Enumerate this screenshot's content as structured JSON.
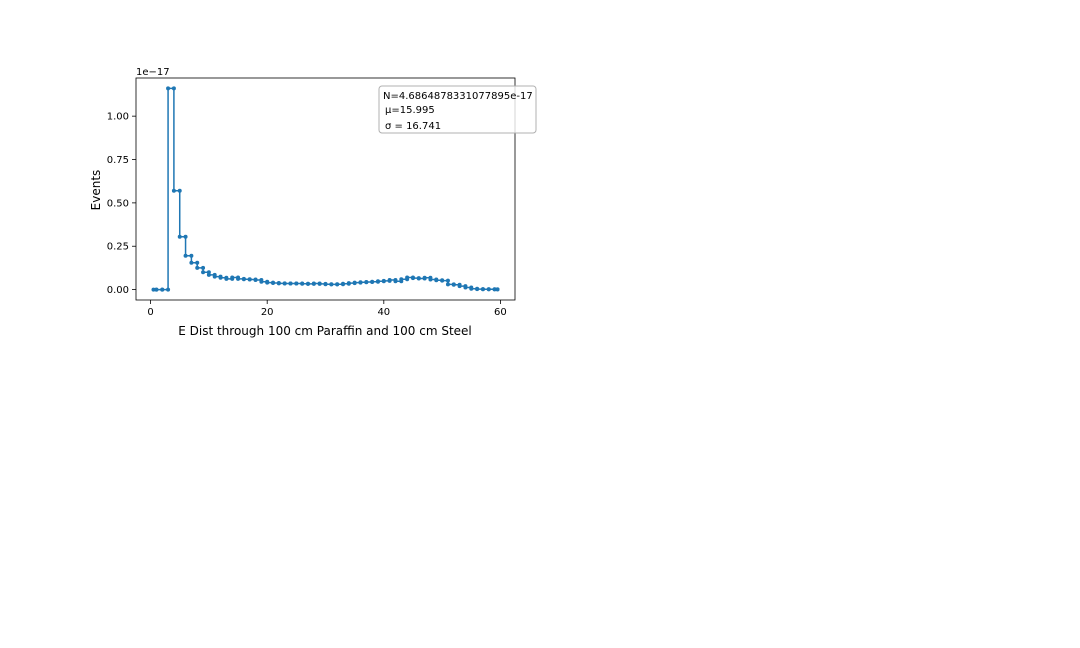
{
  "chart_data": {
    "type": "line",
    "title": "",
    "xlabel": "E Dist through 100 cm Paraffin and 100 cm Steel",
    "ylabel": "Events",
    "y_offset_label": "1e−17",
    "xlim": [
      -2.5,
      62.5
    ],
    "ylim": [
      -0.06,
      1.22
    ],
    "x_ticks": [
      0,
      20,
      40,
      60
    ],
    "x_tick_labels": [
      "0",
      "20",
      "40",
      "60"
    ],
    "y_ticks": [
      0.0,
      0.25,
      0.5,
      0.75,
      1.0
    ],
    "y_tick_labels": [
      "0.00",
      "0.25",
      "0.50",
      "0.75",
      "1.00"
    ],
    "grid": false,
    "step_style": "post",
    "series_color": "#1f77b4",
    "series": [
      {
        "x": [
          0.5,
          1,
          2,
          3,
          4,
          5,
          6,
          7,
          8,
          9,
          10,
          11,
          12,
          13,
          14,
          15,
          16,
          17,
          18,
          19,
          20,
          21,
          22,
          23,
          24,
          25,
          26,
          27,
          28,
          29,
          30,
          31,
          32,
          33,
          34,
          35,
          36,
          37,
          38,
          39,
          40,
          41,
          42,
          43,
          44,
          45,
          46,
          47,
          48,
          49,
          50,
          51,
          52,
          53,
          54,
          55,
          56,
          57,
          58,
          59,
          59.5
        ],
        "y": [
          0.0,
          0.0,
          0.0,
          1.16,
          0.57,
          0.305,
          0.195,
          0.155,
          0.125,
          0.1,
          0.085,
          0.075,
          0.068,
          0.062,
          0.07,
          0.062,
          0.06,
          0.058,
          0.055,
          0.045,
          0.04,
          0.038,
          0.036,
          0.035,
          0.035,
          0.035,
          0.034,
          0.033,
          0.035,
          0.033,
          0.031,
          0.03,
          0.031,
          0.034,
          0.037,
          0.04,
          0.042,
          0.044,
          0.045,
          0.048,
          0.05,
          0.055,
          0.048,
          0.06,
          0.07,
          0.066,
          0.064,
          0.068,
          0.058,
          0.054,
          0.052,
          0.03,
          0.028,
          0.02,
          0.012,
          0.005,
          0.003,
          0.002,
          0.002,
          0.001,
          0.001
        ]
      }
    ],
    "legend": {
      "placement": "upper-right",
      "lines": [
        "N=4.6864878331077895e-17",
        "μ=15.995",
        "σ = 16.741"
      ]
    }
  }
}
